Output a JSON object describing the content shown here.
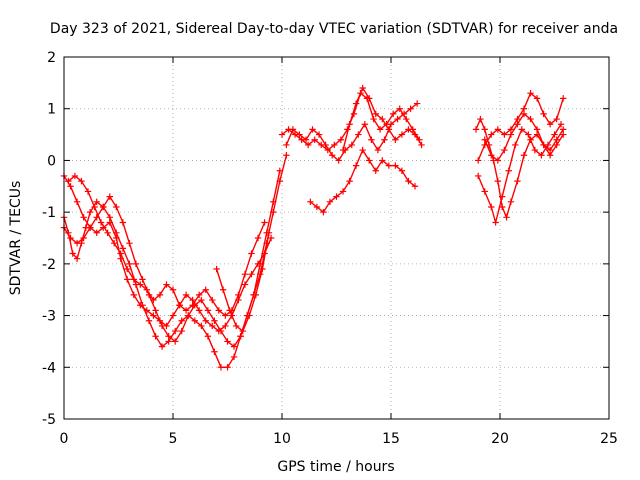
{
  "chart_data": {
    "type": "scatter",
    "title": "Day 323 of 2021, Sidereal Day-to-day VTEC variation (SDTVAR) for receiver anda",
    "xlabel": "GPS time / hours",
    "ylabel": "SDTVAR / TECUs",
    "xlim": [
      0,
      25
    ],
    "ylim": [
      -5,
      2
    ],
    "xticks": [
      0,
      5,
      10,
      15,
      20,
      25
    ],
    "yticks": [
      -5,
      -4,
      -3,
      -2,
      -1,
      0,
      1,
      2
    ],
    "xtick_labels": [
      "0",
      "5",
      "10",
      "15",
      "20",
      "25"
    ],
    "ytick_labels": [
      "-5",
      "-4",
      "-3",
      "-2",
      "-1",
      "0",
      "1",
      "2"
    ],
    "grid": true,
    "marker": "+",
    "color": "#ff0000",
    "series": [
      {
        "name": "track-1",
        "x": [
          0.0,
          0.2,
          0.4,
          0.6,
          0.8,
          1.0,
          1.2,
          1.5,
          1.8,
          2.1,
          2.4,
          2.7,
          3.0,
          3.3,
          3.6,
          3.9,
          4.2,
          4.5,
          4.8,
          5.1,
          5.4,
          5.7,
          6.0,
          6.3,
          6.6,
          6.9,
          7.2,
          7.5,
          7.8,
          8.1,
          8.4,
          8.7,
          9.0,
          9.3,
          9.6,
          9.9,
          10.2
        ],
        "y": [
          -1.1,
          -1.4,
          -1.8,
          -1.9,
          -1.6,
          -1.3,
          -1.0,
          -0.8,
          -0.9,
          -1.1,
          -1.4,
          -1.7,
          -2.0,
          -2.4,
          -2.8,
          -3.1,
          -3.4,
          -3.6,
          -3.5,
          -3.3,
          -3.1,
          -3.0,
          -3.1,
          -3.2,
          -3.4,
          -3.7,
          -4.0,
          -4.0,
          -3.8,
          -3.4,
          -3.0,
          -2.6,
          -2.2,
          -1.6,
          -1.0,
          -0.4,
          0.1
        ]
      },
      {
        "name": "track-2",
        "x": [
          0.0,
          0.3,
          0.6,
          0.9,
          1.2,
          1.5,
          1.8,
          2.1,
          2.4,
          2.6,
          2.9,
          3.2,
          3.5,
          3.8,
          4.1,
          4.4,
          4.7,
          5.0,
          5.3,
          5.6,
          5.9,
          6.2,
          6.5,
          6.8,
          7.1,
          7.4,
          7.7,
          8.0,
          8.3,
          8.6,
          8.9,
          9.2,
          9.5
        ],
        "y": [
          -0.3,
          -0.5,
          -0.8,
          -1.1,
          -1.3,
          -1.4,
          -1.3,
          -1.2,
          -1.5,
          -1.9,
          -2.3,
          -2.6,
          -2.8,
          -2.9,
          -3.0,
          -3.1,
          -3.2,
          -3.0,
          -2.8,
          -2.6,
          -2.7,
          -2.9,
          -3.1,
          -3.2,
          -3.3,
          -3.2,
          -3.0,
          -2.7,
          -2.4,
          -2.2,
          -2.0,
          -1.8,
          -1.5
        ]
      },
      {
        "name": "track-3",
        "x": [
          0.2,
          0.5,
          0.8,
          1.1,
          1.4,
          1.7,
          2.0,
          2.3,
          2.6,
          2.9,
          3.2,
          3.5,
          3.8,
          4.1,
          4.4,
          4.7,
          5.0,
          5.3,
          5.6,
          5.9,
          6.2,
          6.5,
          6.8,
          7.1,
          7.4,
          7.7,
          8.0,
          8.3,
          8.6,
          8.9,
          9.2
        ],
        "y": [
          -0.4,
          -0.3,
          -0.4,
          -0.6,
          -0.9,
          -1.2,
          -1.4,
          -1.6,
          -1.8,
          -2.1,
          -2.3,
          -2.4,
          -2.5,
          -2.7,
          -2.6,
          -2.4,
          -2.5,
          -2.8,
          -2.9,
          -2.8,
          -2.6,
          -2.5,
          -2.7,
          -2.9,
          -3.0,
          -2.9,
          -2.6,
          -2.2,
          -1.8,
          -1.5,
          -1.2
        ]
      },
      {
        "name": "track-4",
        "x": [
          0.0,
          0.3,
          0.6,
          0.9,
          1.2,
          1.5,
          1.8,
          2.1,
          2.4,
          2.7,
          3.0,
          3.3,
          3.6,
          3.9,
          4.2,
          4.5,
          4.8,
          5.1,
          5.4,
          5.7,
          6.0,
          6.3,
          6.6,
          6.9,
          7.2,
          7.5,
          7.8,
          8.1,
          8.4,
          8.7,
          9.0,
          9.3,
          9.6,
          9.9
        ],
        "y": [
          -1.3,
          -1.5,
          -1.6,
          -1.5,
          -1.3,
          -1.1,
          -0.9,
          -0.7,
          -0.9,
          -1.2,
          -1.6,
          -2.0,
          -2.3,
          -2.6,
          -2.9,
          -3.2,
          -3.4,
          -3.5,
          -3.3,
          -3.0,
          -2.8,
          -2.7,
          -2.9,
          -3.1,
          -3.3,
          -3.5,
          -3.6,
          -3.4,
          -3.0,
          -2.6,
          -2.0,
          -1.4,
          -0.8,
          -0.2
        ]
      },
      {
        "name": "track-5",
        "x": [
          7.0,
          7.3,
          7.6,
          7.9,
          8.2,
          8.5,
          8.8,
          9.1,
          9.4
        ],
        "y": [
          -2.1,
          -2.5,
          -2.9,
          -3.2,
          -3.3,
          -3.0,
          -2.6,
          -2.1,
          -1.4
        ]
      },
      {
        "name": "track-6",
        "x": [
          10.0,
          10.3,
          10.6,
          10.9,
          11.2,
          11.5,
          11.8,
          12.1,
          12.4,
          12.7,
          13.0,
          13.3,
          13.6,
          13.9,
          14.2,
          14.5,
          14.8,
          15.1,
          15.4,
          15.7,
          16.0,
          16.3
        ],
        "y": [
          0.5,
          0.6,
          0.5,
          0.4,
          0.3,
          0.4,
          0.3,
          0.2,
          0.3,
          0.4,
          0.6,
          0.9,
          1.3,
          1.2,
          0.8,
          0.6,
          0.7,
          0.9,
          1.0,
          0.8,
          0.6,
          0.4
        ]
      },
      {
        "name": "track-7",
        "x": [
          10.2,
          10.5,
          10.8,
          11.1,
          11.4,
          11.7,
          12.0,
          12.3,
          12.6,
          12.9,
          13.2,
          13.5,
          13.8,
          14.1,
          14.4,
          14.7,
          15.0,
          15.3,
          15.6,
          15.9,
          16.2
        ],
        "y": [
          0.3,
          0.6,
          0.5,
          0.4,
          0.6,
          0.5,
          0.3,
          0.1,
          0.0,
          0.2,
          0.3,
          0.5,
          0.7,
          0.4,
          0.2,
          0.4,
          0.7,
          0.8,
          0.9,
          1.0,
          1.1
        ]
      },
      {
        "name": "track-8",
        "x": [
          11.3,
          11.6,
          11.9,
          12.2,
          12.5,
          12.8,
          13.1,
          13.4,
          13.7,
          14.0,
          14.3,
          14.6,
          14.9,
          15.2,
          15.5,
          15.8,
          16.1
        ],
        "y": [
          -0.8,
          -0.9,
          -1.0,
          -0.8,
          -0.7,
          -0.6,
          -0.4,
          -0.1,
          0.2,
          0.0,
          -0.2,
          0.0,
          -0.1,
          -0.1,
          -0.2,
          -0.4,
          -0.5
        ]
      },
      {
        "name": "track-9",
        "x": [
          12.8,
          13.1,
          13.4,
          13.7,
          14.0,
          14.3,
          14.6,
          14.9,
          15.2,
          15.5,
          15.8,
          16.1,
          16.4
        ],
        "y": [
          0.2,
          0.7,
          1.1,
          1.4,
          1.2,
          0.9,
          0.8,
          0.6,
          0.4,
          0.5,
          0.6,
          0.5,
          0.3
        ]
      },
      {
        "name": "track-10",
        "x": [
          18.9,
          19.1,
          19.3,
          19.5,
          19.7,
          19.9,
          20.1,
          20.3,
          20.5,
          20.8,
          21.1,
          21.4,
          21.7,
          22.0,
          22.3,
          22.6,
          22.9
        ],
        "y": [
          0.6,
          0.8,
          0.6,
          0.3,
          0.0,
          -0.4,
          -0.9,
          -1.1,
          -0.8,
          -0.4,
          0.1,
          0.4,
          0.5,
          0.3,
          0.2,
          0.4,
          0.6
        ]
      },
      {
        "name": "track-11",
        "x": [
          19.0,
          19.3,
          19.6,
          19.9,
          20.2,
          20.5,
          20.8,
          21.1,
          21.4,
          21.7,
          22.0,
          22.3,
          22.6,
          22.9
        ],
        "y": [
          0.0,
          0.3,
          0.5,
          0.6,
          0.5,
          0.6,
          0.8,
          1.0,
          1.3,
          1.2,
          0.9,
          0.7,
          0.8,
          1.2
        ]
      },
      {
        "name": "track-12",
        "x": [
          19.0,
          19.3,
          19.6,
          19.8,
          20.1,
          20.4,
          20.7,
          21.0,
          21.3,
          21.6,
          21.9,
          22.2,
          22.5,
          22.8
        ],
        "y": [
          -0.3,
          -0.6,
          -0.9,
          -1.2,
          -0.7,
          -0.2,
          0.3,
          0.6,
          0.5,
          0.2,
          0.1,
          0.3,
          0.5,
          0.7
        ]
      },
      {
        "name": "track-13",
        "x": [
          19.3,
          19.6,
          19.9,
          20.2,
          20.5,
          20.8,
          21.1,
          21.4,
          21.7,
          22.0,
          22.3,
          22.6,
          22.9
        ],
        "y": [
          0.4,
          0.1,
          0.0,
          0.2,
          0.5,
          0.7,
          0.9,
          0.8,
          0.6,
          0.3,
          0.1,
          0.3,
          0.5
        ]
      }
    ]
  }
}
